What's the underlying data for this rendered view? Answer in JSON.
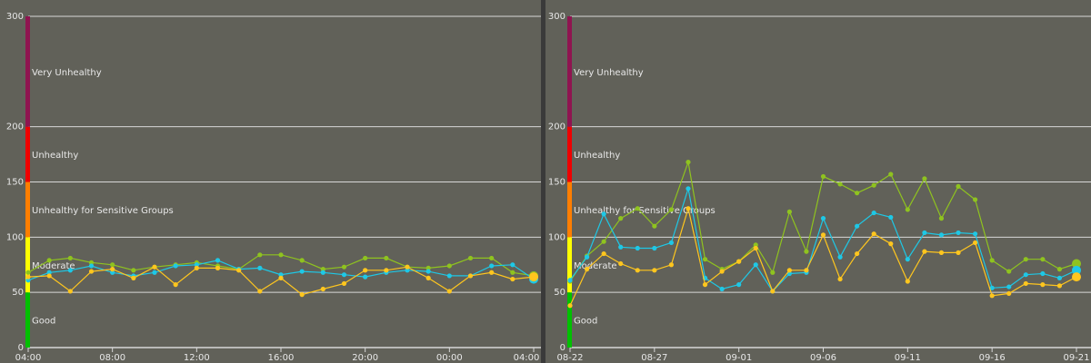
{
  "colors": {
    "background": "#616159",
    "gridline": "#d8d8d8",
    "text": "#e8e8e8",
    "series": [
      "#8fc31f",
      "#1ec8e6",
      "#ffc61e"
    ],
    "aqi_bands": {
      "Good": "#00c000",
      "Moderate": "#ffff00",
      "Unhealthy for Sensitive Groups": "#ff7e00",
      "Unhealthy": "#ee0000",
      "Very Unhealthy": "#8f1450",
      "Hazardous": "#7e0023"
    }
  },
  "chart_data": [
    {
      "type": "line",
      "ylim": [
        0,
        300
      ],
      "yticks": [
        0,
        50,
        100,
        150,
        200,
        300
      ],
      "xlim": [
        0,
        48
      ],
      "xticks": [
        {
          "x": 0,
          "label": "04:00"
        },
        {
          "x": 8,
          "label": "08:00"
        },
        {
          "x": 16,
          "label": "12:00"
        },
        {
          "x": 24,
          "label": "16:00"
        },
        {
          "x": 32,
          "label": "20:00"
        },
        {
          "x": 40,
          "label": "00:00"
        },
        {
          "x": 48,
          "label": "04:00"
        }
      ],
      "bands": [
        {
          "label": "Good",
          "from": 0,
          "to": 50
        },
        {
          "label": "Moderate",
          "from": 50,
          "to": 100
        },
        {
          "label": "Unhealthy for Sensitive Groups",
          "from": 100,
          "to": 150
        },
        {
          "label": "Unhealthy",
          "from": 150,
          "to": 200
        },
        {
          "label": "Very Unhealthy",
          "from": 200,
          "to": 300
        }
      ],
      "series": [
        {
          "values": [
            [
              0,
              68
            ],
            [
              2,
              79
            ],
            [
              4,
              81
            ],
            [
              6,
              77
            ],
            [
              8,
              75
            ],
            [
              10,
              70
            ],
            [
              12,
              73
            ],
            [
              14,
              75
            ],
            [
              16,
              77
            ],
            [
              18,
              74
            ],
            [
              20,
              71
            ],
            [
              22,
              84
            ],
            [
              24,
              84
            ],
            [
              26,
              79
            ],
            [
              28,
              71
            ],
            [
              30,
              73
            ],
            [
              32,
              81
            ],
            [
              34,
              81
            ],
            [
              36,
              73
            ],
            [
              38,
              72
            ],
            [
              40,
              74
            ],
            [
              42,
              81
            ],
            [
              44,
              81
            ],
            [
              46,
              68
            ],
            [
              48,
              65
            ]
          ]
        },
        {
          "values": [
            [
              0,
              61
            ],
            [
              2,
              68
            ],
            [
              4,
              70
            ],
            [
              6,
              74
            ],
            [
              8,
              68
            ],
            [
              10,
              65
            ],
            [
              12,
              68
            ],
            [
              14,
              74
            ],
            [
              16,
              75
            ],
            [
              18,
              79
            ],
            [
              20,
              71
            ],
            [
              22,
              72
            ],
            [
              24,
              66
            ],
            [
              26,
              69
            ],
            [
              28,
              68
            ],
            [
              30,
              66
            ],
            [
              32,
              64
            ],
            [
              34,
              68
            ],
            [
              36,
              70
            ],
            [
              38,
              69
            ],
            [
              40,
              65
            ],
            [
              42,
              65
            ],
            [
              44,
              74
            ],
            [
              46,
              75
            ],
            [
              48,
              62
            ]
          ]
        },
        {
          "values": [
            [
              0,
              64
            ],
            [
              2,
              65
            ],
            [
              4,
              51
            ],
            [
              6,
              69
            ],
            [
              8,
              71
            ],
            [
              10,
              63
            ],
            [
              12,
              73
            ],
            [
              14,
              57
            ],
            [
              16,
              72
            ],
            [
              18,
              72
            ],
            [
              20,
              70
            ],
            [
              22,
              51
            ],
            [
              24,
              63
            ],
            [
              26,
              48
            ],
            [
              28,
              53
            ],
            [
              30,
              58
            ],
            [
              32,
              70
            ],
            [
              34,
              70
            ],
            [
              36,
              73
            ],
            [
              38,
              63
            ],
            [
              40,
              51
            ],
            [
              42,
              65
            ],
            [
              44,
              68
            ],
            [
              46,
              62
            ],
            [
              48,
              64
            ]
          ]
        }
      ]
    },
    {
      "type": "line",
      "ylim": [
        0,
        300
      ],
      "yticks": [
        0,
        50,
        100,
        150,
        200,
        300
      ],
      "xlim": [
        0,
        30
      ],
      "xticks": [
        {
          "x": 0,
          "label": "08-22"
        },
        {
          "x": 5,
          "label": "08-27"
        },
        {
          "x": 10,
          "label": "09-01"
        },
        {
          "x": 15,
          "label": "09-06"
        },
        {
          "x": 20,
          "label": "09-11"
        },
        {
          "x": 25,
          "label": "09-16"
        },
        {
          "x": 30,
          "label": "09-21"
        }
      ],
      "bands": [
        {
          "label": "Good",
          "from": 0,
          "to": 50
        },
        {
          "label": "Moderate",
          "from": 50,
          "to": 100
        },
        {
          "label": "Unhealthy for Sensitive Groups",
          "from": 100,
          "to": 150
        },
        {
          "label": "Unhealthy",
          "from": 150,
          "to": 200
        },
        {
          "label": "Very Unhealthy",
          "from": 200,
          "to": 300
        }
      ],
      "series": [
        {
          "values": [
            [
              0,
              60
            ],
            [
              1,
              83
            ],
            [
              2,
              96
            ],
            [
              3,
              117
            ],
            [
              4,
              126
            ],
            [
              5,
              110
            ],
            [
              6,
              125
            ],
            [
              7,
              168
            ],
            [
              8,
              80
            ],
            [
              9,
              71
            ],
            [
              10,
              78
            ],
            [
              11,
              93
            ],
            [
              12,
              68
            ],
            [
              13,
              123
            ],
            [
              14,
              87
            ],
            [
              15,
              155
            ],
            [
              16,
              148
            ],
            [
              17,
              140
            ],
            [
              18,
              147
            ],
            [
              19,
              157
            ],
            [
              20,
              125
            ],
            [
              21,
              153
            ],
            [
              22,
              117
            ],
            [
              23,
              146
            ],
            [
              24,
              134
            ],
            [
              25,
              79
            ],
            [
              26,
              69
            ],
            [
              27,
              80
            ],
            [
              28,
              80
            ],
            [
              29,
              71
            ],
            [
              30,
              76
            ]
          ]
        },
        {
          "values": [
            [
              0,
              61
            ],
            [
              1,
              82
            ],
            [
              2,
              121
            ],
            [
              3,
              91
            ],
            [
              4,
              90
            ],
            [
              5,
              90
            ],
            [
              6,
              95
            ],
            [
              7,
              144
            ],
            [
              8,
              63
            ],
            [
              9,
              53
            ],
            [
              10,
              57
            ],
            [
              11,
              75
            ],
            [
              12,
              51
            ],
            [
              13,
              67
            ],
            [
              14,
              68
            ],
            [
              15,
              117
            ],
            [
              16,
              82
            ],
            [
              17,
              110
            ],
            [
              18,
              122
            ],
            [
              19,
              118
            ],
            [
              20,
              80
            ],
            [
              21,
              104
            ],
            [
              22,
              102
            ],
            [
              23,
              104
            ],
            [
              24,
              103
            ],
            [
              25,
              54
            ],
            [
              26,
              55
            ],
            [
              27,
              66
            ],
            [
              28,
              67
            ],
            [
              29,
              63
            ],
            [
              30,
              70
            ]
          ]
        },
        {
          "values": [
            [
              0,
              38
            ],
            [
              1,
              71
            ],
            [
              2,
              85
            ],
            [
              3,
              76
            ],
            [
              4,
              70
            ],
            [
              5,
              70
            ],
            [
              6,
              75
            ],
            [
              7,
              126
            ],
            [
              8,
              57
            ],
            [
              9,
              69
            ],
            [
              10,
              78
            ],
            [
              11,
              90
            ],
            [
              12,
              51
            ],
            [
              13,
              70
            ],
            [
              14,
              70
            ],
            [
              15,
              102
            ],
            [
              16,
              62
            ],
            [
              17,
              85
            ],
            [
              18,
              103
            ],
            [
              19,
              94
            ],
            [
              20,
              60
            ],
            [
              21,
              87
            ],
            [
              22,
              86
            ],
            [
              23,
              86
            ],
            [
              24,
              95
            ],
            [
              25,
              47
            ],
            [
              26,
              49
            ],
            [
              27,
              58
            ],
            [
              28,
              57
            ],
            [
              29,
              56
            ],
            [
              30,
              64
            ]
          ]
        }
      ]
    }
  ]
}
